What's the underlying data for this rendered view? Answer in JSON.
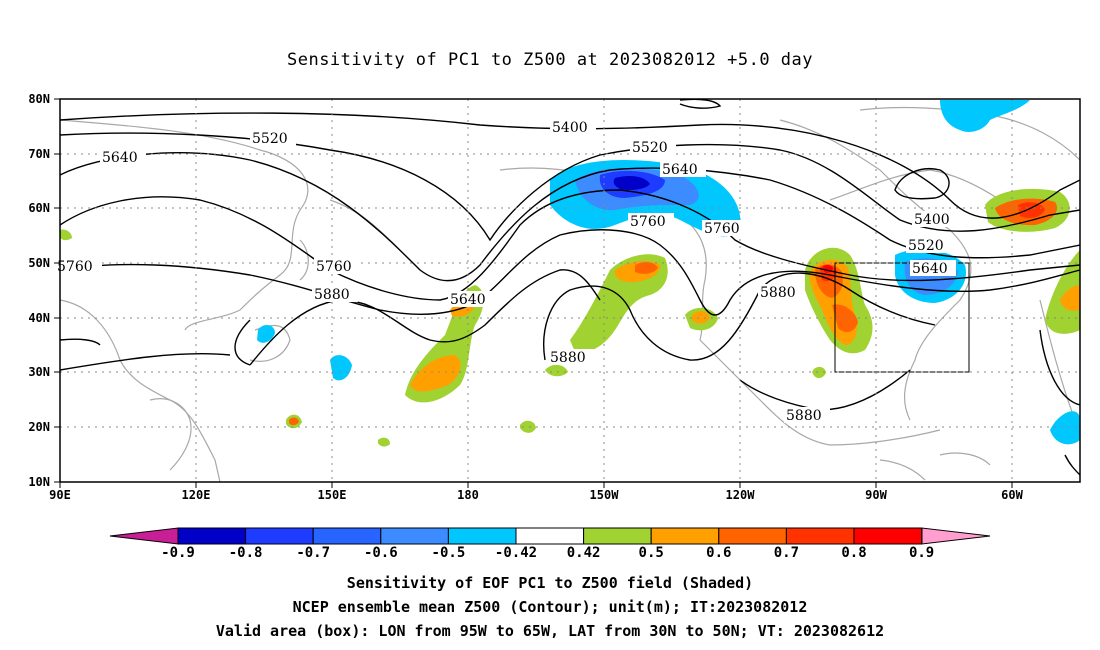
{
  "title": "Sensitivity of PC1 to Z500 at 2023082012 +5.0 day",
  "axes": {
    "lon_ticks": [
      "90E",
      "120E",
      "150E",
      "180",
      "150W",
      "120W",
      "90W",
      "60W"
    ],
    "lat_ticks": [
      "80N",
      "70N",
      "60N",
      "50N",
      "40N",
      "30N",
      "20N",
      "10N"
    ]
  },
  "contour_labels": {
    "c5520a": "5520",
    "c5400a": "5400",
    "c5640a": "5640",
    "c5520b": "5520",
    "c5640b": "5640",
    "c5760a": "5760",
    "c5760b": "5760",
    "c5760c": "5760",
    "c5880a": "5880",
    "c5640c": "5640",
    "c5880b": "5880",
    "c5880c": "5880",
    "c5400b": "5400",
    "c5520c": "5520",
    "c5640d": "5640",
    "c5880d": "5880"
  },
  "colorbar": {
    "labels": [
      "-0.9",
      "-0.8",
      "-0.7",
      "-0.6",
      "-0.5",
      "-0.42",
      "0.42",
      "0.5",
      "0.6",
      "0.7",
      "0.8",
      "0.9"
    ],
    "colors": [
      "#0000c8",
      "#1e3cff",
      "#2864ff",
      "#3c8cff",
      "#00c8ff",
      "#ffffff",
      "#a0d232",
      "#ffa000",
      "#ff6400",
      "#ff3200",
      "#ff0000"
    ],
    "low_end_color": "#c81e96",
    "high_end_color": "#ff9ecf"
  },
  "captions": {
    "line1": "Sensitivity of EOF PC1 to Z500 field (Shaded)",
    "line2": "NCEP ensemble mean Z500 (Contour); unit(m); IT:2023082012",
    "line3": "Valid area (box): LON from 95W to 65W, LAT from 30N to 50N; VT: 2023082612"
  },
  "valid_area": {
    "lon_min_deg": -95,
    "lon_max_deg": -65,
    "lat_min_deg": 30,
    "lat_max_deg": 50
  }
}
